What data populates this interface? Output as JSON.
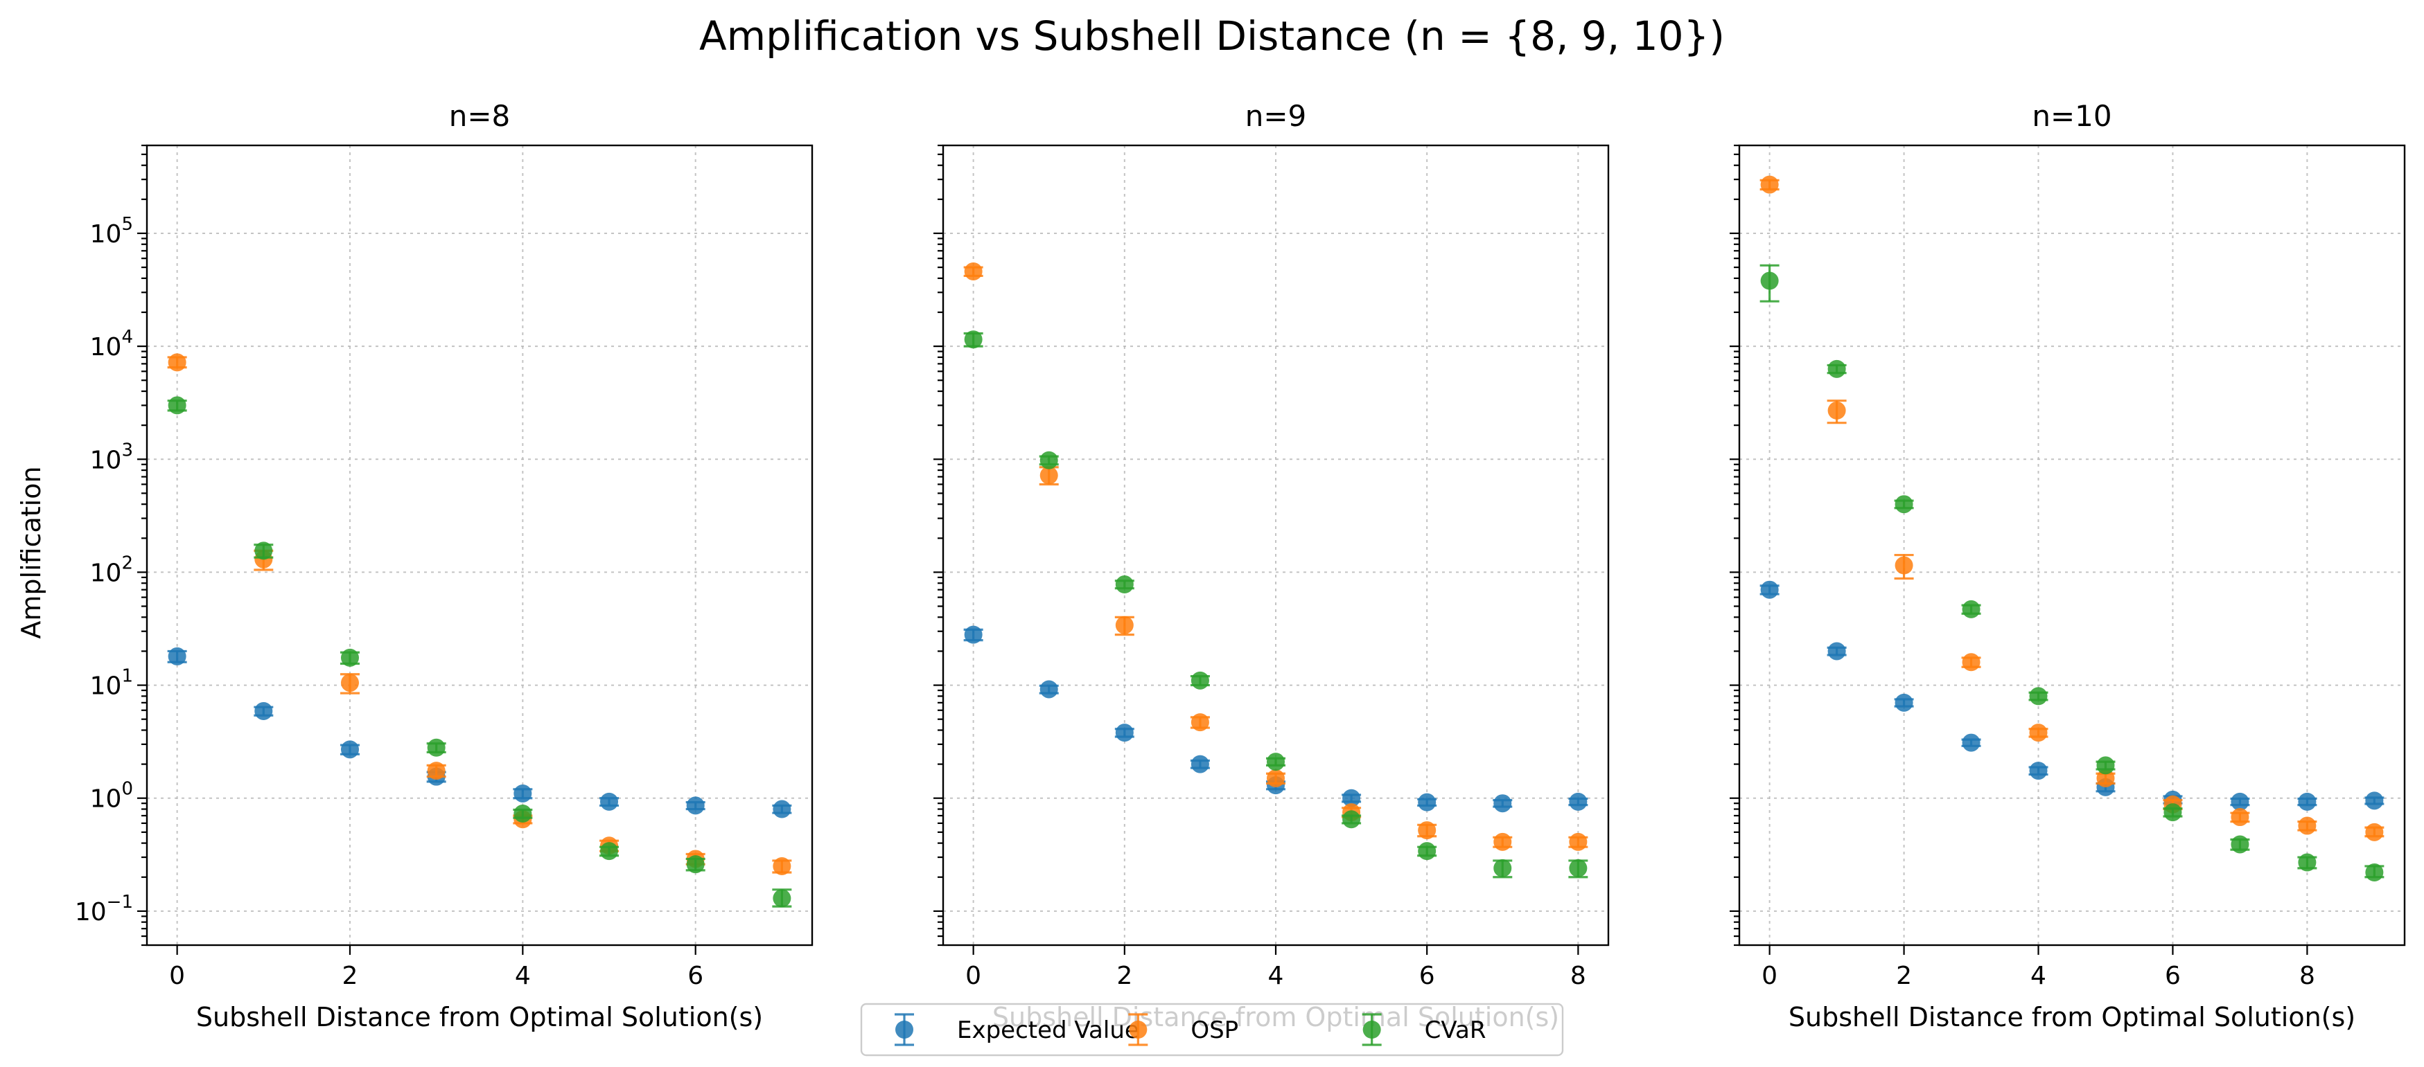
{
  "chart_data": {
    "type": "scatter",
    "title": "Amplification vs Subshell Distance (n = {8, 9, 10})",
    "ylabel": "Amplification",
    "yscale": "log",
    "ylim": [
      0.05,
      600000
    ],
    "y_ticks": [
      {
        "value": 0.1,
        "base": "10",
        "exp": "−1"
      },
      {
        "value": 1,
        "base": "10",
        "exp": "0"
      },
      {
        "value": 10,
        "base": "10",
        "exp": "1"
      },
      {
        "value": 100,
        "base": "10",
        "exp": "2"
      },
      {
        "value": 1000,
        "base": "10",
        "exp": "3"
      },
      {
        "value": 10000,
        "base": "10",
        "exp": "4"
      },
      {
        "value": 100000,
        "base": "10",
        "exp": "5"
      }
    ],
    "grid": true,
    "legend": {
      "placement": "bottom-center",
      "entries": [
        {
          "name": "Expected Value",
          "color": "#1f77b4"
        },
        {
          "name": "OSP",
          "color": "#ff7f0e"
        },
        {
          "name": "CVaR",
          "color": "#2ca02c"
        }
      ]
    },
    "panels": [
      {
        "title": "n=8",
        "xlabel": "Subshell Distance from Optimal Solution(s)",
        "xlim": [
          -0.35,
          7.35
        ],
        "x_ticks": [
          0,
          2,
          4,
          6
        ],
        "series": [
          {
            "name": "Expected Value",
            "color": "#1f77b4",
            "x": [
              0,
              1,
              2,
              3,
              4,
              5,
              6,
              7
            ],
            "y": [
              18,
              5.9,
              2.7,
              1.55,
              1.1,
              0.93,
              0.86,
              0.8
            ],
            "yerr_low": [
              16,
              5.4,
              2.45,
              1.4,
              1.0,
              0.86,
              0.8,
              0.74
            ],
            "yerr_high": [
              20,
              6.4,
              2.95,
              1.7,
              1.2,
              1.0,
              0.92,
              0.86
            ]
          },
          {
            "name": "OSP",
            "color": "#ff7f0e",
            "x": [
              0,
              1,
              2,
              3,
              4,
              5,
              6,
              7
            ],
            "y": [
              7200,
              130,
              10.5,
              1.75,
              0.65,
              0.38,
              0.29,
              0.25
            ],
            "yerr_low": [
              6500,
              105,
              8.5,
              1.55,
              0.6,
              0.34,
              0.26,
              0.22
            ],
            "yerr_high": [
              8000,
              155,
              12.5,
              1.95,
              0.7,
              0.42,
              0.32,
              0.28
            ]
          },
          {
            "name": "CVaR",
            "color": "#2ca02c",
            "x": [
              0,
              1,
              2,
              3,
              4,
              5,
              6,
              7
            ],
            "y": [
              3000,
              155,
              17.5,
              2.8,
              0.73,
              0.34,
              0.26,
              0.13
            ],
            "yerr_low": [
              2700,
              135,
              15.5,
              2.55,
              0.67,
              0.31,
              0.23,
              0.11
            ],
            "yerr_high": [
              3300,
              175,
              19.5,
              3.05,
              0.79,
              0.37,
              0.29,
              0.155
            ]
          }
        ]
      },
      {
        "title": "n=9",
        "xlabel": "Subshell Distance from Optimal Solution(s)",
        "xlim": [
          -0.4,
          8.4
        ],
        "x_ticks": [
          0,
          2,
          4,
          6,
          8
        ],
        "series": [
          {
            "name": "Expected Value",
            "color": "#1f77b4",
            "x": [
              0,
              1,
              2,
              3,
              4,
              5,
              6,
              7,
              8
            ],
            "y": [
              28,
              9.2,
              3.8,
              2.0,
              1.3,
              1.0,
              0.92,
              0.9,
              0.93
            ],
            "yerr_low": [
              25,
              8.5,
              3.5,
              1.85,
              1.2,
              0.93,
              0.86,
              0.84,
              0.87
            ],
            "yerr_high": [
              31,
              9.9,
              4.1,
              2.15,
              1.4,
              1.07,
              0.98,
              0.96,
              0.99
            ]
          },
          {
            "name": "OSP",
            "color": "#ff7f0e",
            "x": [
              0,
              1,
              2,
              3,
              4,
              5,
              6,
              7,
              8
            ],
            "y": [
              46000,
              720,
              34,
              4.7,
              1.5,
              0.75,
              0.52,
              0.41,
              0.41
            ],
            "yerr_low": [
              42000,
              600,
              28,
              4.2,
              1.35,
              0.68,
              0.46,
              0.37,
              0.37
            ],
            "yerr_high": [
              50000,
              850,
              40,
              5.2,
              1.65,
              0.82,
              0.58,
              0.45,
              0.45
            ]
          },
          {
            "name": "CVaR",
            "color": "#2ca02c",
            "x": [
              0,
              1,
              2,
              3,
              4,
              5,
              6,
              7,
              8
            ],
            "y": [
              11500,
              980,
              78,
              11,
              2.1,
              0.65,
              0.34,
              0.24,
              0.24
            ],
            "yerr_low": [
              10000,
              900,
              72,
              10,
              1.95,
              0.6,
              0.31,
              0.2,
              0.2
            ],
            "yerr_high": [
              13000,
              1060,
              84,
              12,
              2.25,
              0.7,
              0.37,
              0.28,
              0.28
            ]
          }
        ]
      },
      {
        "title": "n=10",
        "xlabel": "Subshell Distance from Optimal Solution(s)",
        "xlim": [
          -0.45,
          9.45
        ],
        "x_ticks": [
          0,
          2,
          4,
          6,
          8
        ],
        "series": [
          {
            "name": "Expected Value",
            "color": "#1f77b4",
            "x": [
              0,
              1,
              2,
              3,
              4,
              5,
              6,
              7,
              8,
              9
            ],
            "y": [
              70,
              20,
              7.0,
              3.1,
              1.75,
              1.25,
              0.97,
              0.93,
              0.93,
              0.95
            ],
            "yerr_low": [
              64,
              18.5,
              6.5,
              2.9,
              1.62,
              1.15,
              0.9,
              0.87,
              0.87,
              0.89
            ],
            "yerr_high": [
              76,
              21.5,
              7.5,
              3.3,
              1.88,
              1.35,
              1.04,
              0.99,
              0.99,
              1.01
            ]
          },
          {
            "name": "OSP",
            "color": "#ff7f0e",
            "x": [
              0,
              1,
              2,
              3,
              4,
              5,
              6,
              7,
              8,
              9
            ],
            "y": [
              270000,
              2700,
              115,
              16,
              3.8,
              1.5,
              0.88,
              0.68,
              0.57,
              0.5
            ],
            "yerr_low": [
              245000,
              2100,
              88,
              14.5,
              3.5,
              1.35,
              0.8,
              0.62,
              0.52,
              0.46
            ],
            "yerr_high": [
              295000,
              3300,
              142,
              17.5,
              4.1,
              1.65,
              0.96,
              0.74,
              0.62,
              0.55
            ]
          },
          {
            "name": "CVaR",
            "color": "#2ca02c",
            "x": [
              0,
              1,
              2,
              3,
              4,
              5,
              6,
              7,
              8,
              9
            ],
            "y": [
              38000,
              6300,
              400,
              47,
              8.0,
              1.95,
              0.75,
              0.39,
              0.27,
              0.22
            ],
            "yerr_low": [
              25000,
              5800,
              370,
              43,
              7.4,
              1.8,
              0.69,
              0.35,
              0.24,
              0.2
            ],
            "yerr_high": [
              52000,
              6800,
              430,
              51,
              8.6,
              2.1,
              0.81,
              0.43,
              0.3,
              0.25
            ]
          }
        ]
      }
    ]
  }
}
